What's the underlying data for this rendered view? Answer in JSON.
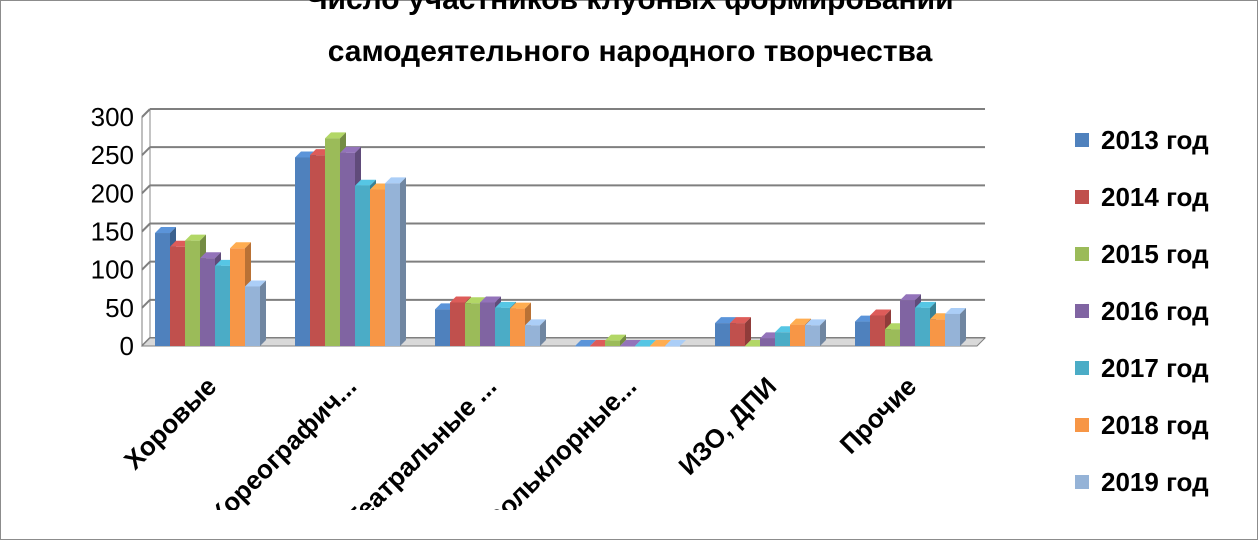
{
  "chart_data": {
    "type": "bar",
    "title_lines": [
      "Число участников клубных формирований",
      "самодеятельного народного творчества"
    ],
    "categories": [
      "Хоровые",
      "Хореографич...",
      "Театральные ...",
      "Фольклорные...",
      "ИЗО, ДПИ",
      "Прочие"
    ],
    "series": [
      {
        "name": "2013 год",
        "color": "#4f81bd",
        "values": [
          148,
          247,
          48,
          0,
          30,
          32
        ]
      },
      {
        "name": "2014 год",
        "color": "#c0504d",
        "values": [
          130,
          250,
          57,
          0,
          30,
          40
        ]
      },
      {
        "name": "2015 год",
        "color": "#9bbb59",
        "values": [
          138,
          272,
          56,
          7,
          0,
          22
        ]
      },
      {
        "name": "2016 год",
        "color": "#8064a2",
        "values": [
          115,
          253,
          57,
          0,
          10,
          60
        ]
      },
      {
        "name": "2017 год",
        "color": "#4bacc6",
        "values": [
          105,
          210,
          50,
          0,
          18,
          50
        ]
      },
      {
        "name": "2018 год",
        "color": "#f79646",
        "values": [
          128,
          205,
          49,
          0,
          28,
          35
        ]
      },
      {
        "name": "2019 год",
        "color": "#95b3d7",
        "values": [
          78,
          213,
          27,
          0,
          27,
          42
        ]
      }
    ],
    "y_ticks": [
      "0",
      "50",
      "100",
      "150",
      "200",
      "250",
      "300"
    ],
    "ylim": [
      0,
      300
    ],
    "grid": true,
    "legend_position": "right"
  }
}
